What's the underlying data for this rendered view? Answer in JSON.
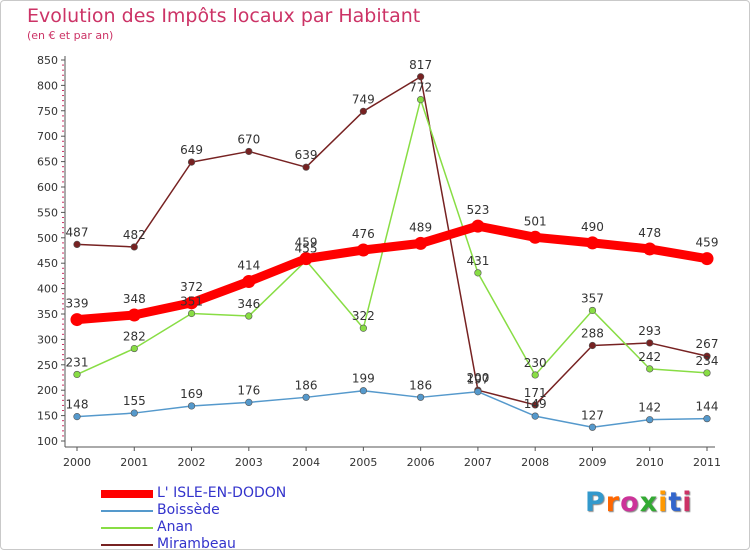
{
  "page": {
    "title": "Evolution des Impôts locaux par Habitant",
    "subtitle": "(en € et par an)",
    "logo": "Proxiti"
  },
  "chart_data": {
    "type": "line",
    "title": "Evolution des Impôts locaux par Habitant",
    "subtitle": "(en € et par an)",
    "xlabel": "",
    "ylabel": "",
    "x": [
      "2000",
      "2001",
      "2002",
      "2003",
      "2004",
      "2005",
      "2006",
      "2007",
      "2008",
      "2009",
      "2010",
      "2011"
    ],
    "ylim": [
      100,
      850
    ],
    "yticks": [
      "100",
      "150",
      "200",
      "250",
      "300",
      "350",
      "400",
      "450",
      "500",
      "550",
      "600",
      "650",
      "700",
      "750",
      "800",
      "850"
    ],
    "grid": false,
    "legend_position": "bottom-left",
    "series": [
      {
        "name": "L' ISLE-EN-DODON",
        "color": "#ff0000",
        "values": [
          339,
          348,
          372,
          414,
          459,
          476,
          489,
          523,
          501,
          490,
          478,
          459
        ]
      },
      {
        "name": "Boissède",
        "color": "#5599cc",
        "values": [
          148,
          155,
          169,
          176,
          186,
          199,
          186,
          197,
          149,
          127,
          142,
          144
        ]
      },
      {
        "name": "Anan",
        "color": "#88dd44",
        "values": [
          231,
          282,
          351,
          346,
          455,
          322,
          772,
          431,
          230,
          357,
          242,
          234
        ]
      },
      {
        "name": "Mirambeau",
        "color": "#772222",
        "values": [
          487,
          482,
          649,
          670,
          639,
          749,
          817,
          200,
          171,
          288,
          293,
          267
        ]
      }
    ]
  }
}
